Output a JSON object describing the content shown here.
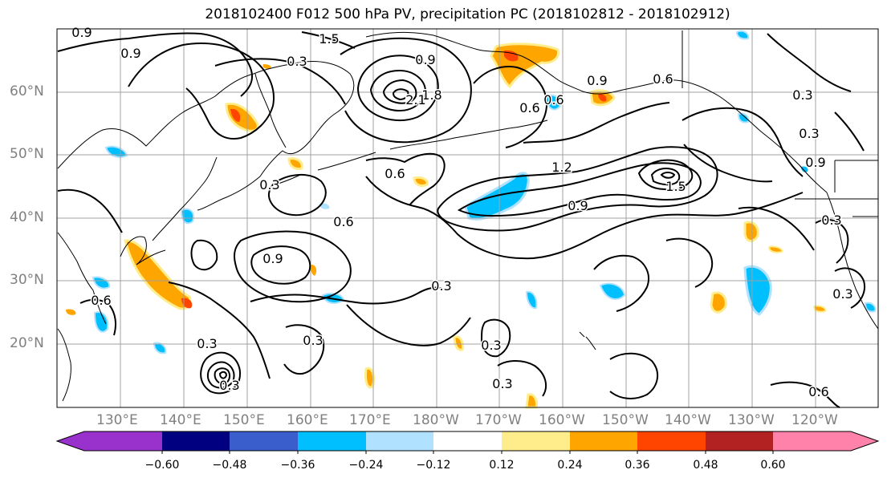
{
  "title": "2018102400 F012 500 hPa PV, precipitation PC (2018102812 - 2018102912)",
  "lat_labels": [
    "60°N",
    "50°N",
    "40°N",
    "30°N",
    "20°N"
  ],
  "lon_labels": [
    "130°E",
    "140°E",
    "150°E",
    "160°E",
    "170°E",
    "180°W",
    "170°W",
    "160°W",
    "150°W",
    "140°W",
    "130°W",
    "120°W"
  ],
  "contour_labels": [
    "0.9",
    "0.9",
    "1.5",
    "0.3",
    "0.9",
    "1.8",
    "2.1",
    "0.6",
    "0.9",
    "0.6",
    "0.6",
    "0.9",
    "0.3",
    "0.6",
    "1.2",
    "1.5",
    "0.9",
    "0.3",
    "0.6",
    "0.9",
    "0.6",
    "0.3",
    "0.3",
    "0.3",
    "0.3",
    "0.3",
    "0.6",
    "0.3",
    "0.3",
    "0.3",
    "0.3"
  ],
  "colorbar": {
    "ticks": [
      "−0.60",
      "−0.48",
      "−0.36",
      "−0.24",
      "−0.12",
      "0.12",
      "0.24",
      "0.36",
      "0.48",
      "0.60"
    ],
    "colors": [
      "#9932cc",
      "#000080",
      "#3a5fcd",
      "#00bfff",
      "#b0e2ff",
      "#ffffff",
      "#ffec8b",
      "#ffa500",
      "#ff4500",
      "#b22222",
      "#ff82ab"
    ]
  },
  "colors": {
    "contour": "#000000",
    "coast": "#000000",
    "grid": "#a0a0a0",
    "axis_label": "#808080"
  }
}
